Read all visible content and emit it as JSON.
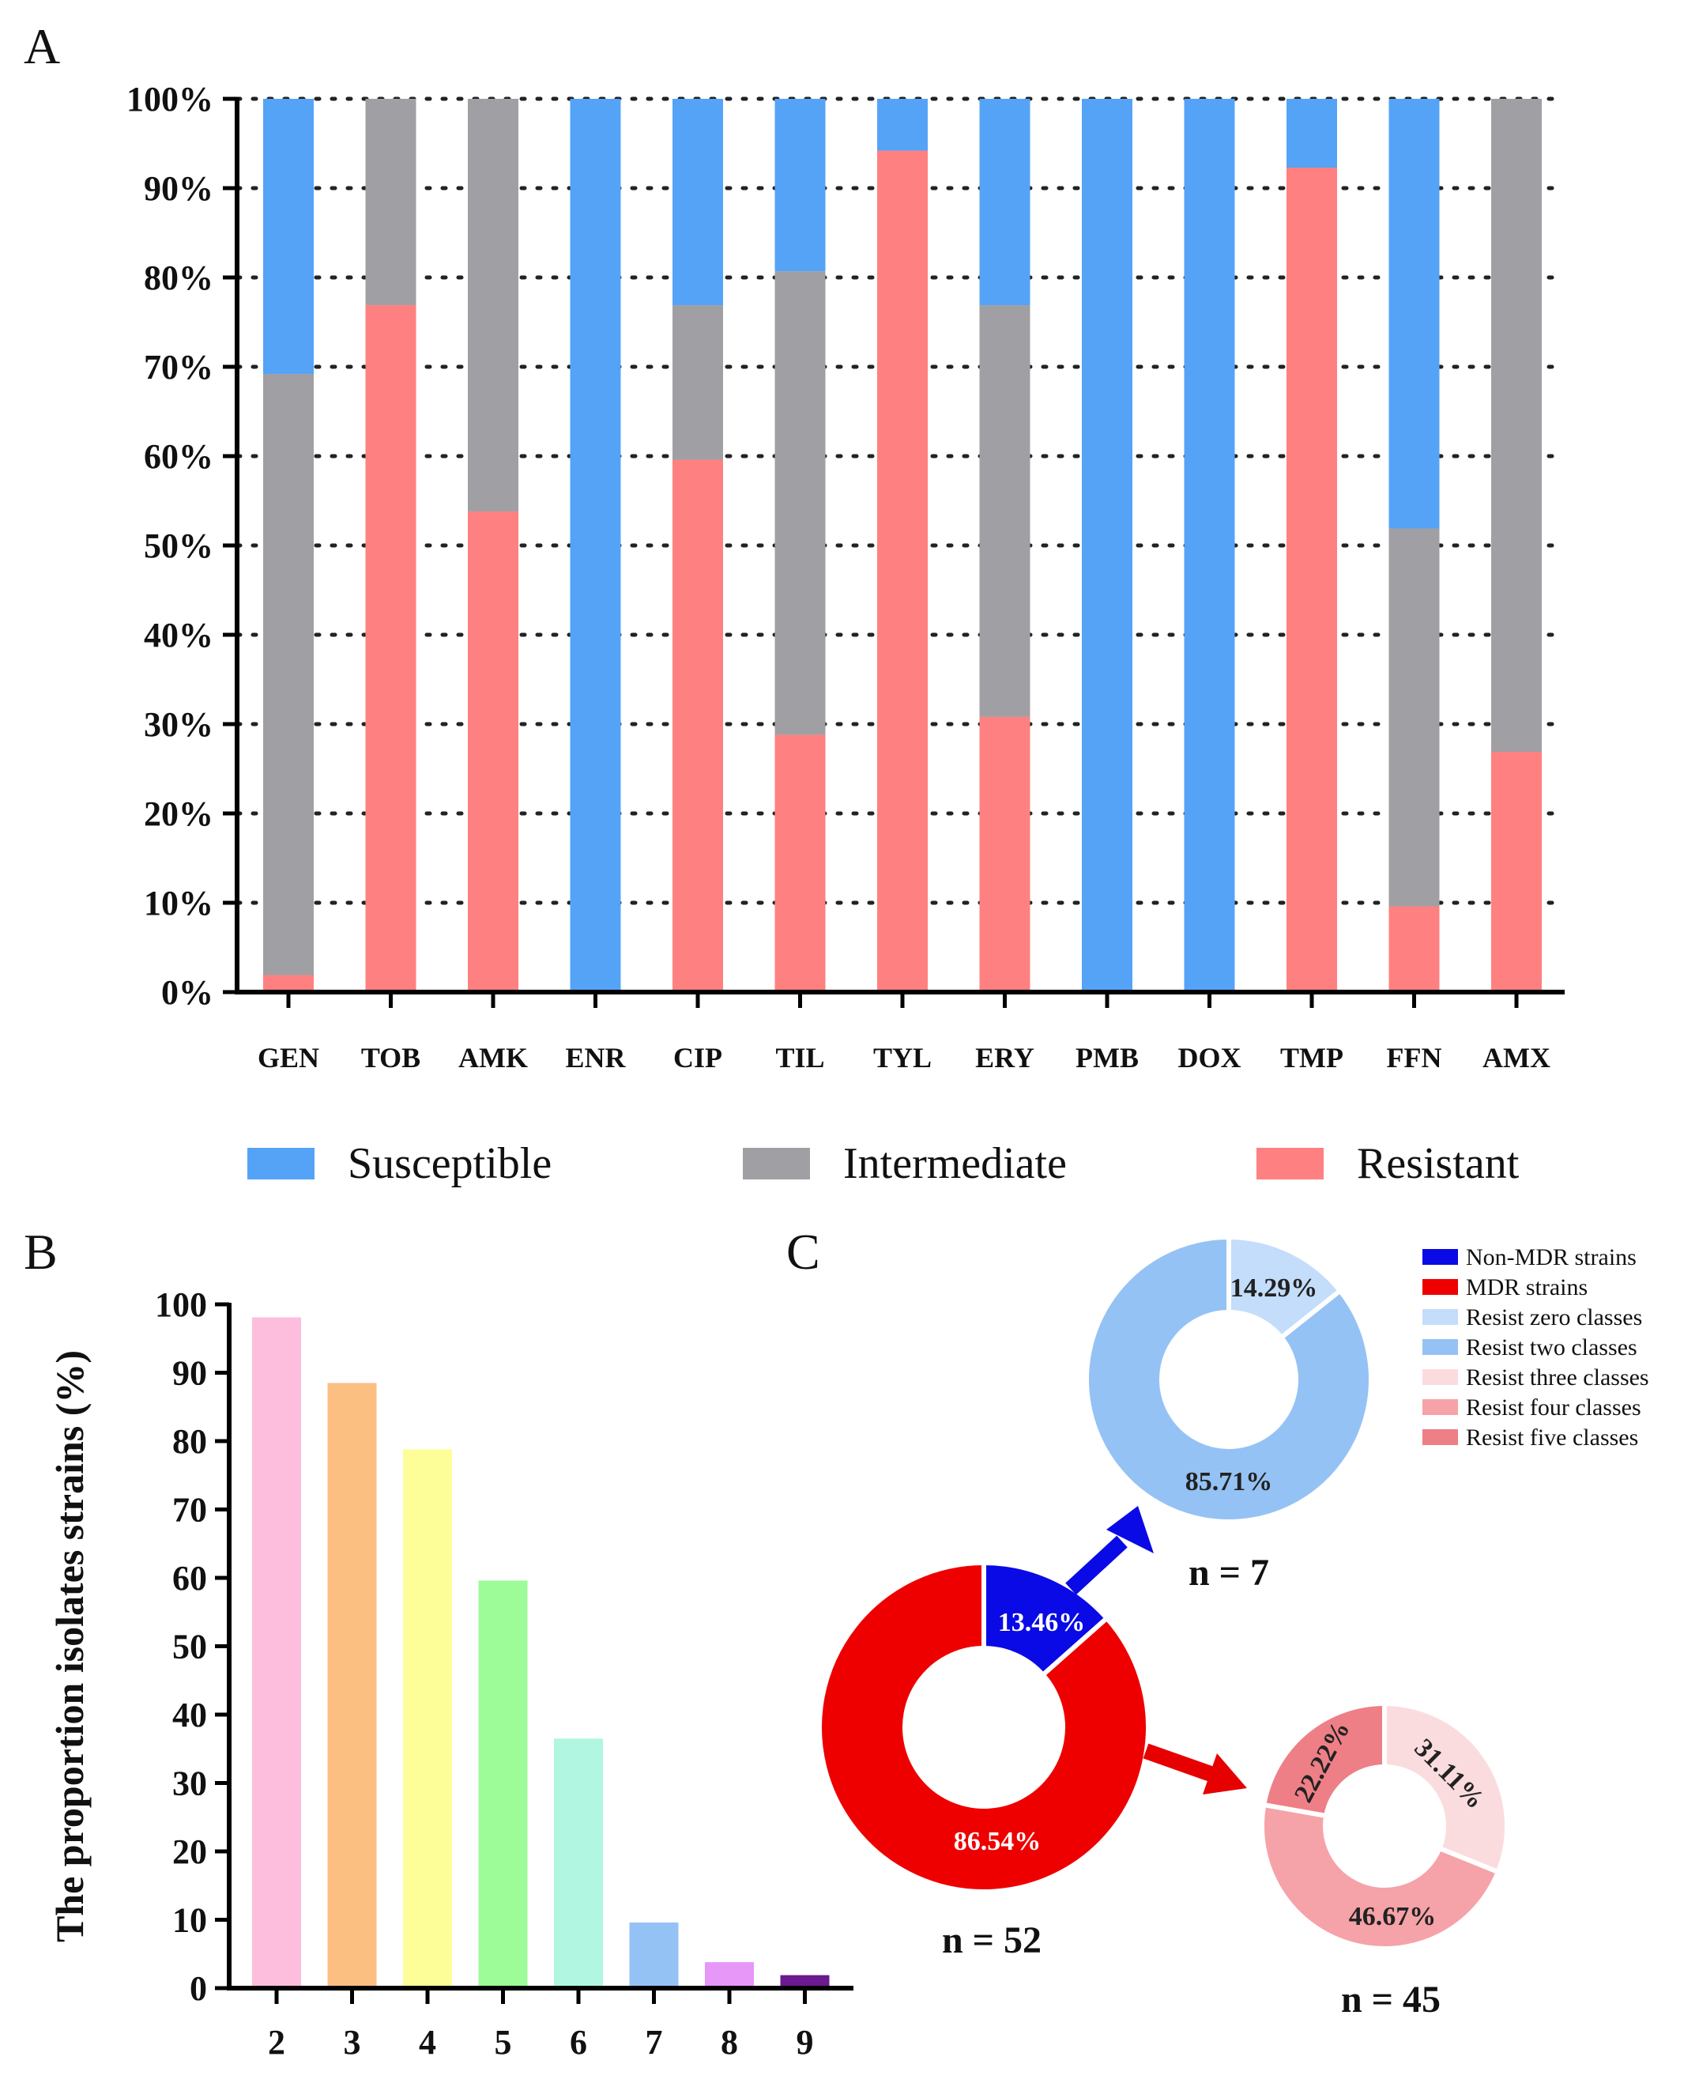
{
  "chart_data": [
    {
      "panel": "A",
      "type": "bar",
      "stacked": true,
      "categories": [
        "GEN",
        "TOB",
        "AMK",
        "ENR",
        "CIP",
        "TIL",
        "TYL",
        "ERY",
        "PMB",
        "DOX",
        "TMP",
        "FFN",
        "AMX"
      ],
      "series": [
        {
          "name": "Resistant",
          "color": "#ff8080",
          "values": [
            1.9,
            76.9,
            53.8,
            0,
            59.6,
            28.8,
            94.2,
            30.8,
            0,
            0,
            92.3,
            9.6,
            26.9
          ]
        },
        {
          "name": "Intermediate",
          "color": "#a0a0a4",
          "values": [
            67.3,
            23.1,
            46.2,
            0,
            17.3,
            51.9,
            0,
            46.1,
            0,
            0,
            0,
            42.3,
            73.1
          ]
        },
        {
          "name": "Susceptible",
          "color": "#55a3f7",
          "values": [
            30.8,
            0,
            0,
            100,
            23.1,
            19.3,
            5.8,
            23.1,
            100,
            100,
            7.7,
            48.1,
            0
          ]
        }
      ],
      "yticks": [
        "0%",
        "10%",
        "20%",
        "30%",
        "40%",
        "50%",
        "60%",
        "70%",
        "80%",
        "90%",
        "100%"
      ],
      "ylim": [
        0,
        100
      ],
      "grid": "dotted",
      "legend": [
        "Susceptible",
        "Intermediate",
        "Resistant"
      ],
      "legend_position": "bottom"
    },
    {
      "panel": "B",
      "type": "bar",
      "categories": [
        "2",
        "3",
        "4",
        "5",
        "6",
        "7",
        "8",
        "9"
      ],
      "values": [
        98.1,
        88.5,
        78.8,
        59.6,
        36.5,
        9.6,
        3.8,
        1.9
      ],
      "colors": [
        "#fdbedd",
        "#fbbf82",
        "#fefe99",
        "#9dfb98",
        "#b1f6e0",
        "#95c2f5",
        "#e697f7",
        "#6b1a8f"
      ],
      "ylabel": "The proportion isolates strains (%)",
      "yticks": [
        "0",
        "10",
        "20",
        "30",
        "40",
        "50",
        "60",
        "70",
        "80",
        "90",
        "100"
      ],
      "ylim": [
        0,
        100
      ]
    },
    {
      "panel": "C",
      "type": "pie",
      "donuts": [
        {
          "id": "main",
          "n_label": "n = 52",
          "slices": [
            {
              "name": "Non-MDR strains",
              "value": 13.46,
              "label": "13.46%",
              "color": "#0a0ae6"
            },
            {
              "name": "MDR strains",
              "value": 86.54,
              "label": "86.54%",
              "color": "#ee0000"
            }
          ]
        },
        {
          "id": "non-mdr",
          "n_label": "n = 7",
          "slices": [
            {
              "name": "Resist zero classes",
              "value": 14.29,
              "label": "14.29%",
              "color": "#c4ddfb"
            },
            {
              "name": "Resist two classes",
              "value": 85.71,
              "label": "85.71%",
              "color": "#95c2f5"
            }
          ]
        },
        {
          "id": "mdr",
          "n_label": "n = 45",
          "slices": [
            {
              "name": "Resist three classes",
              "value": 31.11,
              "label": "31.11%",
              "color": "#fbdcde"
            },
            {
              "name": "Resist four classes",
              "value": 46.67,
              "label": "46.67%",
              "color": "#f5a3a8"
            },
            {
              "name": "Resist five classes",
              "value": 22.22,
              "label": "22.22%",
              "color": "#ee7f86"
            }
          ]
        }
      ],
      "legend": [
        {
          "name": "Non-MDR strains",
          "color": "#0a0ae6"
        },
        {
          "name": "MDR strains",
          "color": "#ee0000"
        },
        {
          "name": "Resist zero classes",
          "color": "#c4ddfb"
        },
        {
          "name": "Resist two classes",
          "color": "#95c2f5"
        },
        {
          "name": "Resist three classes",
          "color": "#fbdcde"
        },
        {
          "name": "Resist four classes",
          "color": "#f5a3a8"
        },
        {
          "name": "Resist five classes",
          "color": "#ee7f86"
        }
      ],
      "legend_position": "top-right"
    }
  ],
  "panels": {
    "a": "A",
    "b": "B",
    "c": "C"
  },
  "colors": {
    "arrow_blue": "#0a0ae6",
    "arrow_red": "#e60000",
    "axis": "#000000"
  }
}
